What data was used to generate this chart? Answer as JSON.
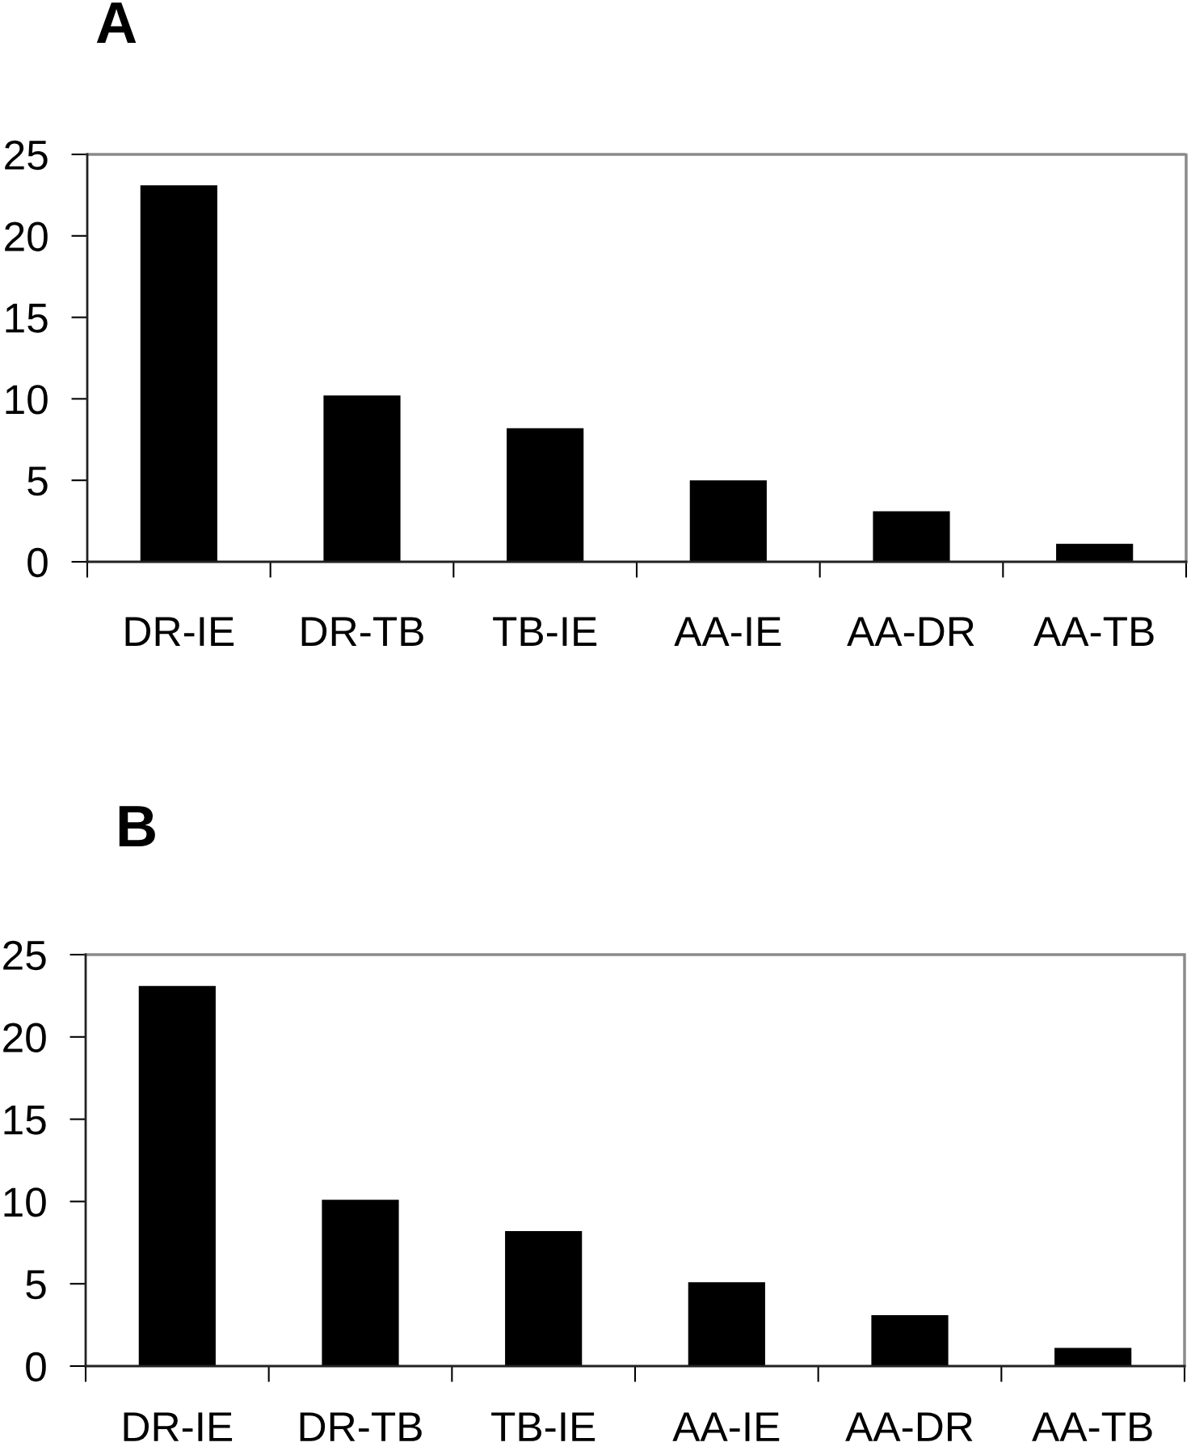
{
  "chart_data": [
    {
      "type": "bar",
      "title": "A",
      "categories": [
        "DR-IE",
        "DR-TB",
        "TB-IE",
        "AA-IE",
        "AA-DR",
        "AA-TB"
      ],
      "values": [
        23.1,
        10.2,
        8.2,
        5.0,
        3.1,
        1.1
      ],
      "color": "#000000",
      "ylim": [
        0,
        25
      ],
      "yticks": [
        0,
        5,
        10,
        15,
        20,
        25
      ],
      "grid": false
    },
    {
      "type": "bar",
      "title": "B",
      "categories": [
        "DR-IE",
        "DR-TB",
        "TB-IE",
        "AA-IE",
        "AA-DR",
        "AA-TB"
      ],
      "values": [
        23.1,
        10.1,
        8.2,
        5.1,
        3.1,
        1.1
      ],
      "color": "#000000",
      "ylim": [
        0,
        25
      ],
      "yticks": [
        0,
        5,
        10,
        15,
        20,
        25
      ],
      "grid": false
    }
  ]
}
